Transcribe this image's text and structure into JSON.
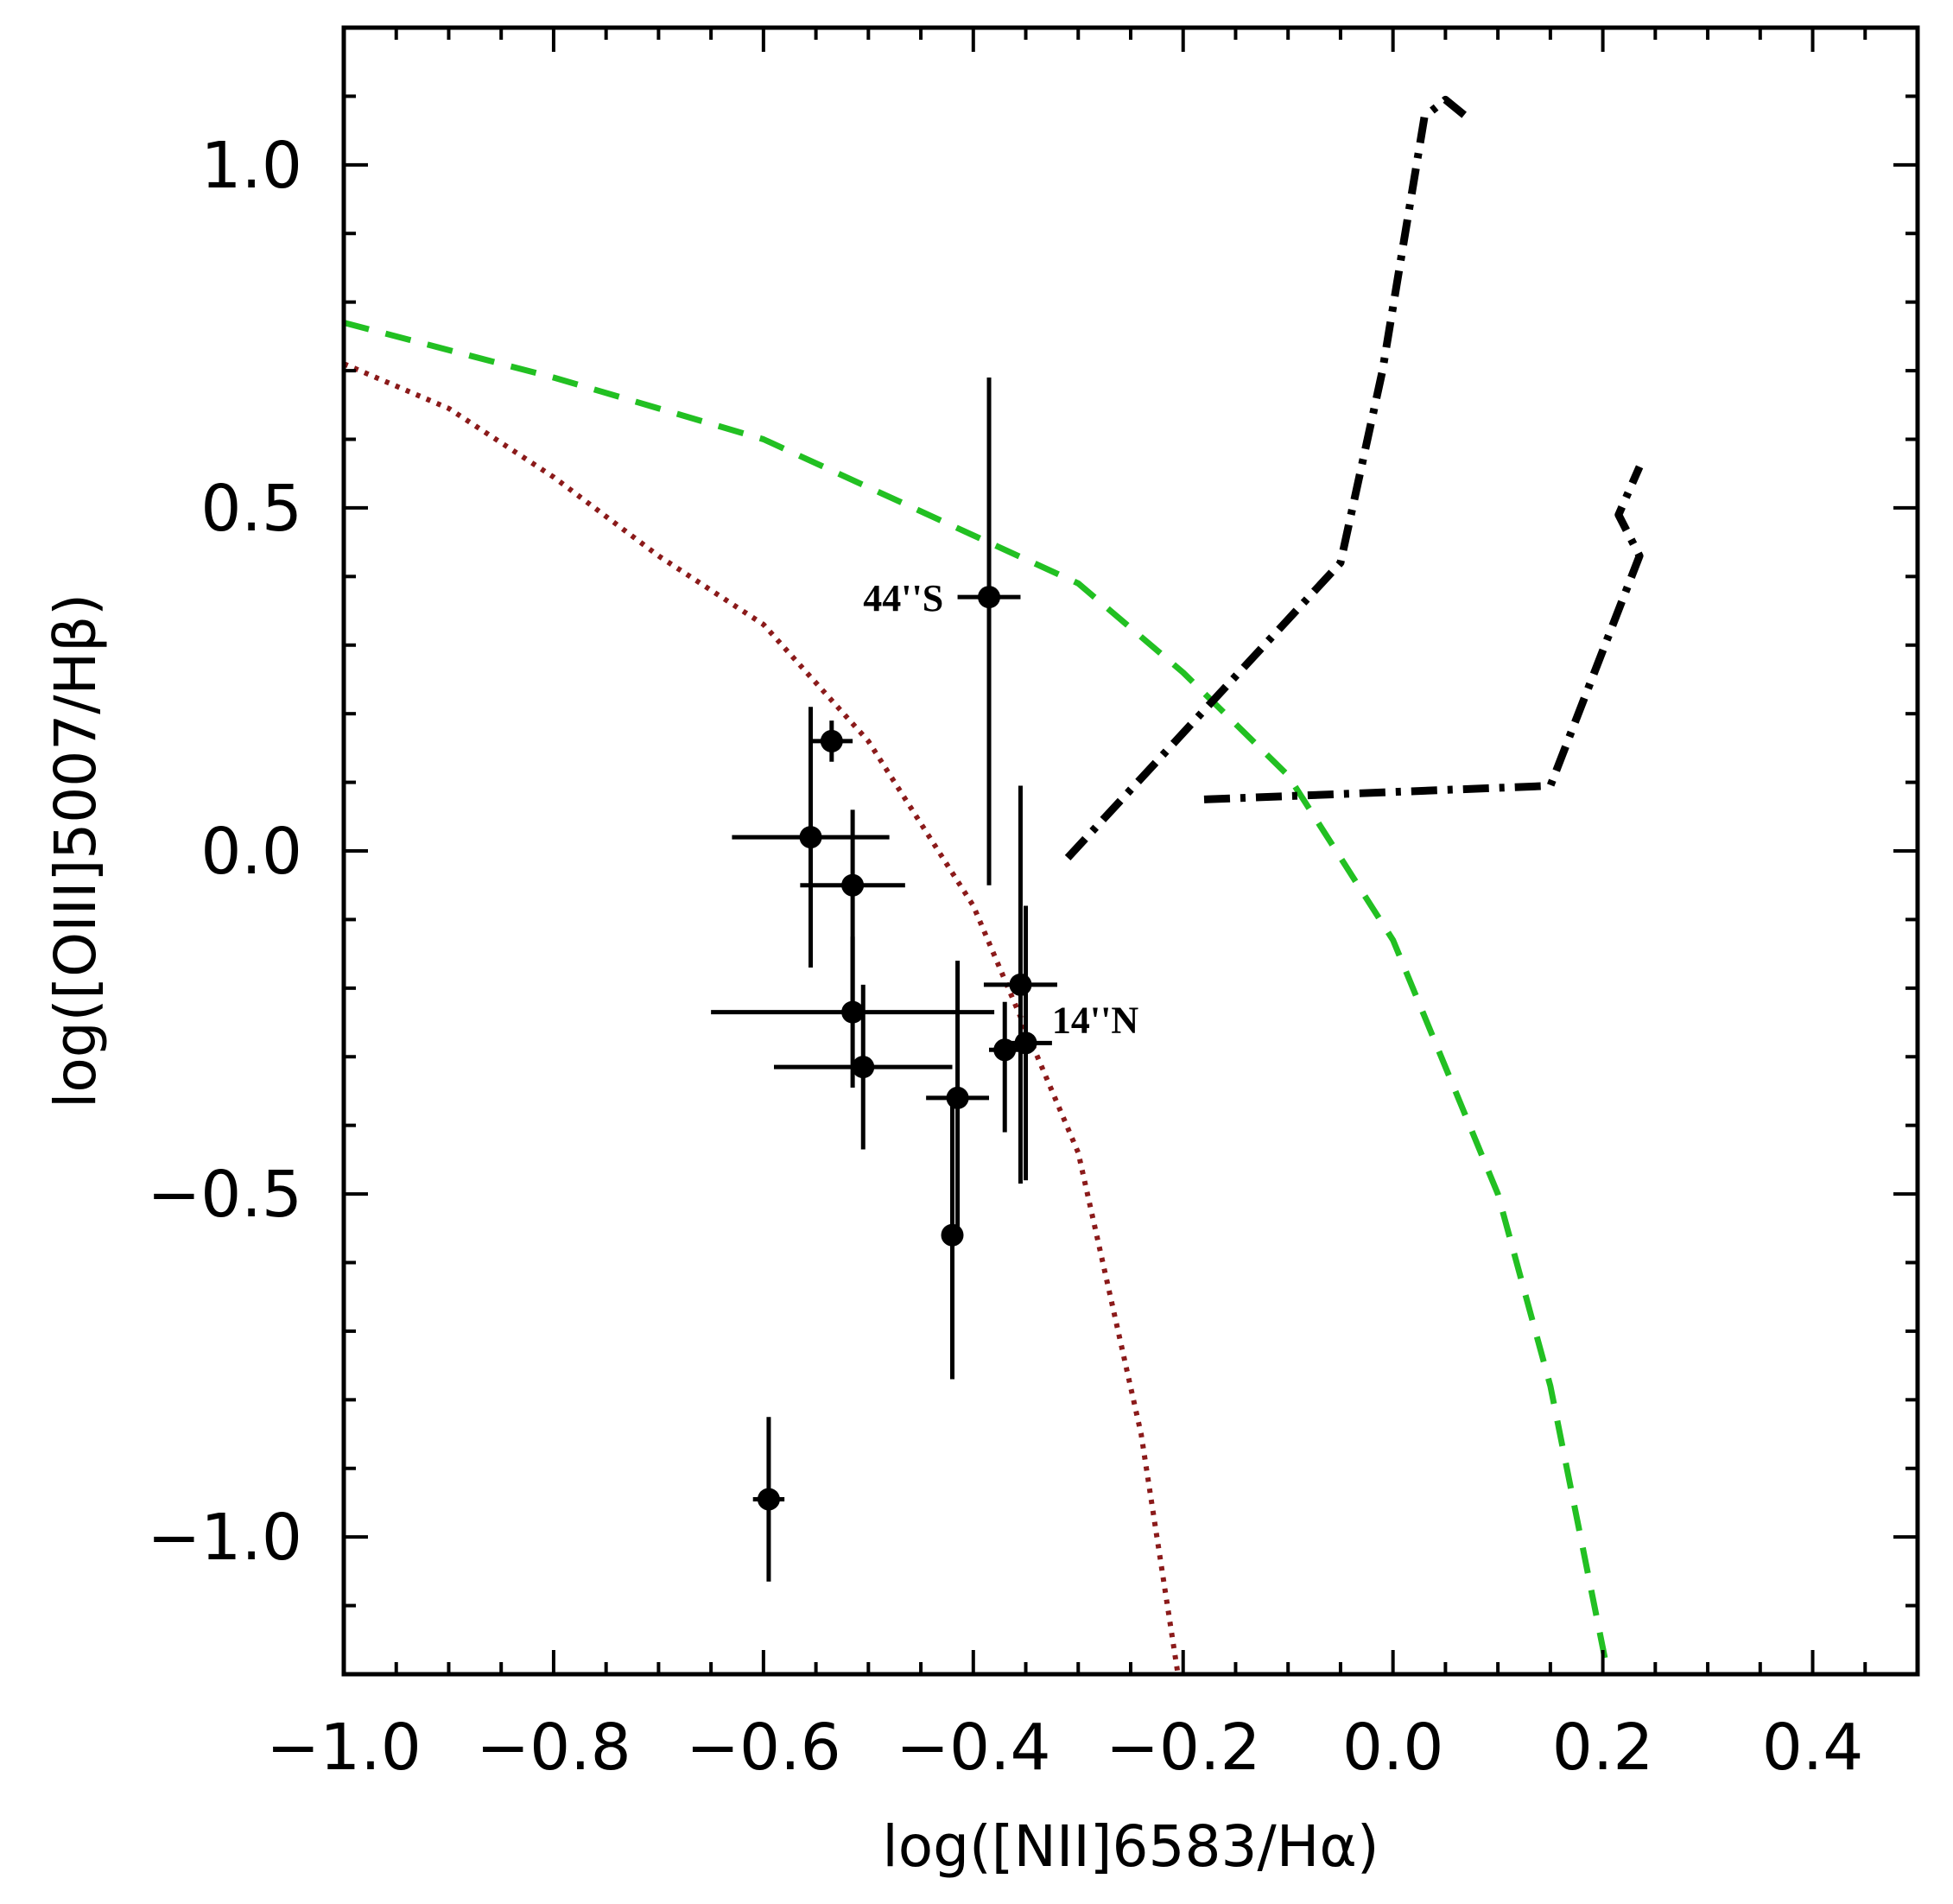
{
  "chart_data": {
    "type": "scatter",
    "title": "",
    "xlabel": "log([NII]6583/Hα)",
    "ylabel": "log([OIII]5007/Hβ)",
    "xlim": [
      -1.0,
      0.5
    ],
    "ylim": [
      -1.2,
      1.2
    ],
    "xticks": [
      {
        "value": -1.0,
        "label": "−1.0"
      },
      {
        "value": -0.8,
        "label": "−0.8"
      },
      {
        "value": -0.6,
        "label": "−0.6"
      },
      {
        "value": -0.4,
        "label": "−0.4"
      },
      {
        "value": -0.2,
        "label": "−0.2"
      },
      {
        "value": 0.0,
        "label": "0.0"
      },
      {
        "value": 0.2,
        "label": "0.2"
      },
      {
        "value": 0.4,
        "label": "0.4"
      }
    ],
    "yticks": [
      {
        "value": 1.0,
        "label": "1.0"
      },
      {
        "value": 0.5,
        "label": "0.5"
      },
      {
        "value": 0.0,
        "label": "0.0"
      },
      {
        "value": -0.5,
        "label": "−0.5"
      },
      {
        "value": -1.0,
        "label": "−1.0"
      }
    ],
    "x_minor_step": 0.05,
    "y_minor_step": 0.1,
    "grid": false,
    "points": [
      {
        "x": -0.385,
        "y": 0.37,
        "xerr": 0.03,
        "yerr_lo": 0.42,
        "yerr_hi": 0.32,
        "label": "44''S"
      },
      {
        "x": -0.535,
        "y": 0.16,
        "xerr": 0.02,
        "yerr_lo": 0.03,
        "yerr_hi": 0.03,
        "label": ""
      },
      {
        "x": -0.555,
        "y": 0.02,
        "xerr": 0.075,
        "yerr_lo": 0.19,
        "yerr_hi": 0.19,
        "label": ""
      },
      {
        "x": -0.515,
        "y": -0.05,
        "xerr": 0.05,
        "yerr_lo": 0.17,
        "yerr_hi": 0.11,
        "label": ""
      },
      {
        "x": -0.515,
        "y": -0.235,
        "xerr": 0.135,
        "yerr_lo": 0.11,
        "yerr_hi": 0.11,
        "label": ""
      },
      {
        "x": -0.505,
        "y": -0.315,
        "xerr": 0.085,
        "yerr_lo": 0.12,
        "yerr_hi": 0.12,
        "label": ""
      },
      {
        "x": -0.415,
        "y": -0.36,
        "xerr": 0.03,
        "yerr_lo": 0.2,
        "yerr_hi": 0.2,
        "label": ""
      },
      {
        "x": -0.42,
        "y": -0.56,
        "xerr": 0.0,
        "yerr_lo": 0.21,
        "yerr_hi": 0.21,
        "label": ""
      },
      {
        "x": -0.37,
        "y": -0.29,
        "xerr": 0.015,
        "yerr_lo": 0.12,
        "yerr_hi": 0.07,
        "label": ""
      },
      {
        "x": -0.355,
        "y": -0.195,
        "xerr": 0.035,
        "yerr_lo": 0.29,
        "yerr_hi": 0.29,
        "label": "14''N"
      },
      {
        "x": -0.35,
        "y": -0.28,
        "xerr": 0.025,
        "yerr_lo": 0.2,
        "yerr_hi": 0.2,
        "label": ""
      },
      {
        "x": -0.595,
        "y": -0.945,
        "xerr": 0.015,
        "yerr_lo": 0.12,
        "yerr_hi": 0.12,
        "label": ""
      }
    ],
    "curves": [
      {
        "name": "red-dotted-demarcation",
        "color": "#8b1a1a",
        "style": "dotted",
        "points": [
          [
            -1.0,
            0.71
          ],
          [
            -0.9,
            0.645
          ],
          [
            -0.8,
            0.545
          ],
          [
            -0.7,
            0.43
          ],
          [
            -0.6,
            0.33
          ],
          [
            -0.5,
            0.16
          ],
          [
            -0.4,
            -0.08
          ],
          [
            -0.3,
            -0.44
          ],
          [
            -0.24,
            -0.85
          ],
          [
            -0.205,
            -1.2
          ]
        ]
      },
      {
        "name": "green-dashed-demarcation",
        "color": "#22c022",
        "style": "dashed",
        "points": [
          [
            -1.0,
            0.77
          ],
          [
            -0.8,
            0.69
          ],
          [
            -0.6,
            0.6
          ],
          [
            -0.4,
            0.46
          ],
          [
            -0.3,
            0.39
          ],
          [
            -0.2,
            0.26
          ],
          [
            -0.1,
            0.11
          ],
          [
            0.0,
            -0.13
          ],
          [
            0.1,
            -0.5
          ],
          [
            0.15,
            -0.78
          ],
          [
            0.205,
            -1.2
          ]
        ]
      },
      {
        "name": "black-dashdot-track-1",
        "color": "#000000",
        "style": "dashdot",
        "points": [
          [
            -0.31,
            -0.01
          ],
          [
            -0.05,
            0.42
          ],
          [
            -0.01,
            0.7
          ],
          [
            0.03,
            1.07
          ],
          [
            0.05,
            1.095
          ],
          [
            0.07,
            1.07
          ]
        ]
      },
      {
        "name": "black-dashdot-track-2",
        "color": "#000000",
        "style": "dashdot",
        "points": [
          [
            -0.18,
            0.075
          ],
          [
            0.15,
            0.095
          ],
          [
            0.235,
            0.43
          ],
          [
            0.215,
            0.49
          ],
          [
            0.235,
            0.56
          ]
        ]
      }
    ],
    "annotations": [
      {
        "text": "44''S",
        "x": -0.505,
        "y": 0.37
      },
      {
        "text": "14''N",
        "x": -0.325,
        "y": -0.245
      }
    ]
  }
}
